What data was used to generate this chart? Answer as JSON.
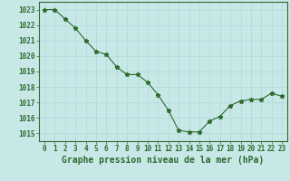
{
  "x": [
    0,
    1,
    2,
    3,
    4,
    5,
    6,
    7,
    8,
    9,
    10,
    11,
    12,
    13,
    14,
    15,
    16,
    17,
    18,
    19,
    20,
    21,
    22,
    23
  ],
  "y": [
    1023.0,
    1023.0,
    1022.4,
    1021.8,
    1021.0,
    1020.3,
    1020.1,
    1019.3,
    1018.8,
    1018.8,
    1018.3,
    1017.5,
    1016.5,
    1015.2,
    1015.1,
    1015.1,
    1015.8,
    1016.1,
    1016.8,
    1017.1,
    1017.2,
    1017.2,
    1017.6,
    1017.4
  ],
  "line_color": "#2d6a2d",
  "marker": "*",
  "bg_color": "#c8e8e8",
  "grid_color": "#b0d8d8",
  "ylabel_ticks": [
    1015,
    1016,
    1017,
    1018,
    1019,
    1020,
    1021,
    1022,
    1023
  ],
  "xlabel_label": "Graphe pression niveau de la mer (hPa)",
  "ylim": [
    1014.5,
    1023.5
  ],
  "xlim": [
    -0.5,
    23.5
  ],
  "tick_fontsize": 5.5,
  "xlabel_fontsize": 7.0
}
